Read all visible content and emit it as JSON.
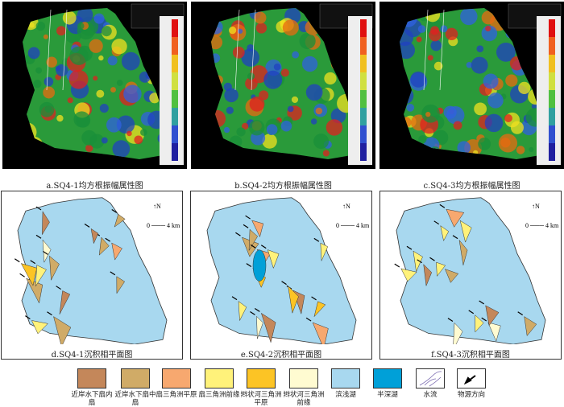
{
  "top_panels": [
    {
      "caption": "a.SQ4-1均方根振幅属性图"
    },
    {
      "caption": "b.SQ4-2均方根振幅属性图"
    },
    {
      "caption": "c.SQ4-3均方根振幅属性图"
    }
  ],
  "bottom_panels": [
    {
      "caption": "d.SQ4-1沉积相平面图"
    },
    {
      "caption": "e.SQ4-2沉积相平面图"
    },
    {
      "caption": "f.SQ4-3沉积相平面图"
    }
  ],
  "map_annotations": {
    "north": "N",
    "scale_zero": "0",
    "scale_end": "4 km"
  },
  "legend": [
    {
      "label": "近岸水下扇内扇",
      "color": "#c4875a"
    },
    {
      "label": "近岸水下扇中扇",
      "color": "#d0ab67"
    },
    {
      "label": "扇三角洲平原",
      "color": "#f7a86f"
    },
    {
      "label": "扇三角洲前缘",
      "color": "#fff27a"
    },
    {
      "label": "辫状河三角洲平原",
      "color": "#fcc425"
    },
    {
      "label": "辫状河三角洲前缘",
      "color": "#fffbd1"
    },
    {
      "label": "滨浅湖",
      "color": "#a8d8ef"
    },
    {
      "label": "半深湖",
      "color": "#00a0d8"
    },
    {
      "label": "水流",
      "icon": "stream-icon"
    },
    {
      "label": "物源方向",
      "icon": "arrow-icon"
    }
  ]
}
